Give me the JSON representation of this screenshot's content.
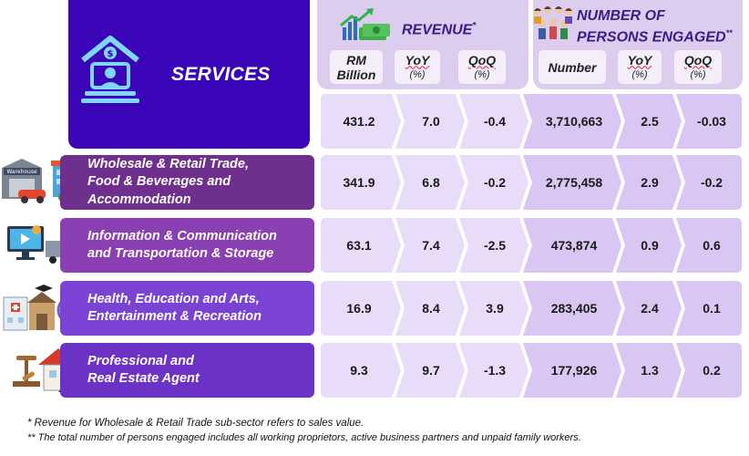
{
  "header": {
    "services_title": "SERVICES",
    "revenue_title": "REVENUE",
    "revenue_mark": "*",
    "revenue_sub": [
      {
        "line1": "RM",
        "line2": "Billion"
      },
      {
        "line1": "YoY",
        "line2": "(%)"
      },
      {
        "line1": "QoQ",
        "line2": "(%)"
      }
    ],
    "persons_title_1": "NUMBER OF",
    "persons_title_2": "PERSONS ENGAGED",
    "persons_mark": "**",
    "persons_sub": [
      {
        "line1": "Number",
        "line2": ""
      },
      {
        "line1": "YoY",
        "line2": "(%)"
      },
      {
        "line1": "QoQ",
        "line2": "(%)"
      }
    ]
  },
  "total_row": {
    "rev": "431.2",
    "rev_yoy": "7.0",
    "rev_qoq": "-0.4",
    "num": "3,710,663",
    "num_yoy": "2.5",
    "num_qoq": "-0.03"
  },
  "rows": [
    {
      "label1": "Wholesale & Retail Trade,",
      "label2": "Food & Beverages and",
      "label3": "Accommodation",
      "rev": "341.9",
      "rev_yoy": "6.8",
      "rev_qoq": "-0.2",
      "num": "2,775,458",
      "num_yoy": "2.9",
      "num_qoq": "-0.2"
    },
    {
      "label1": "Information & Communication",
      "label2": "and Transportation & Storage",
      "label3": "",
      "rev": "63.1",
      "rev_yoy": "7.4",
      "rev_qoq": "-2.5",
      "num": "473,874",
      "num_yoy": "0.9",
      "num_qoq": "0.6"
    },
    {
      "label1": "Health, Education and Arts,",
      "label2": "Entertainment & Recreation",
      "label3": "",
      "rev": "16.9",
      "rev_yoy": "8.4",
      "rev_qoq": "3.9",
      "num": "283,405",
      "num_yoy": "2.4",
      "num_qoq": "0.1"
    },
    {
      "label1": "Professional and",
      "label2": "Real Estate Agent",
      "label3": "",
      "rev": "9.3",
      "rev_yoy": "9.7",
      "rev_qoq": "-1.3",
      "num": "177,926",
      "num_yoy": "1.3",
      "num_qoq": "0.2"
    }
  ],
  "icons": {
    "warehouse_sign": "Warehouse",
    "services": "services-icon",
    "row_icons": [
      "warehouse-store-icon",
      "computer-truck-icon",
      "hospital-school-icon",
      "real-estate-agent-icon"
    ]
  },
  "footnotes": {
    "note1": "* Revenue for Wholesale & Retail Trade sub-sector refers to sales value.",
    "note2": "** The total number of persons engaged includes all working proprietors, active business partners and unpaid family workers."
  },
  "colors": {
    "services_bg": "#3a06b8",
    "header_bg": "#dccdee",
    "cell_light": "#e9dcf8",
    "cell_mid": "#d9c6f2",
    "row_colors": [
      "#6f2f8c",
      "#8a3fb2",
      "#7a43d3",
      "#6b32c5"
    ]
  }
}
